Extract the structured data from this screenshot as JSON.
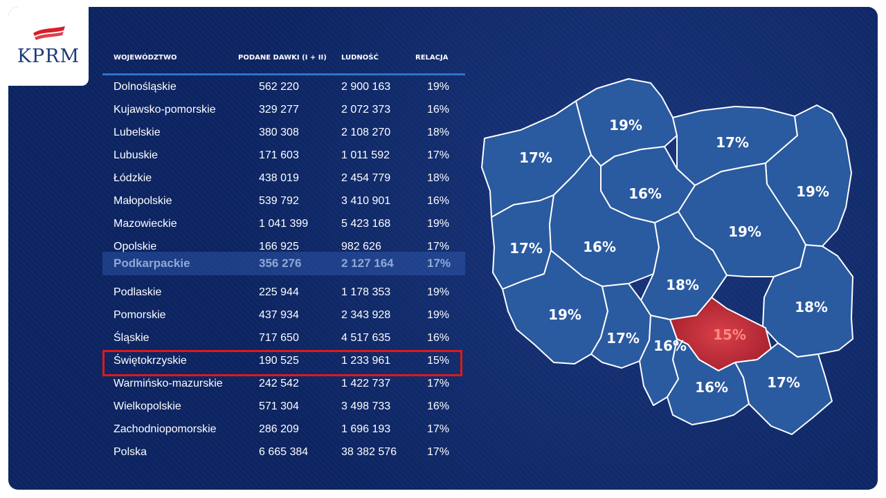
{
  "brand": {
    "logo_text": "KPRM"
  },
  "table": {
    "headers": [
      "WOJEWÓDZTWO",
      "PODANE DAWKI (I + II)",
      "LUDNOŚĆ",
      "RELACJA"
    ],
    "rows": [
      {
        "name": "Dolnośląskie",
        "doses": "562 220",
        "population": "2 900 163",
        "ratio": "19%"
      },
      {
        "name": "Kujawsko-pomorskie",
        "doses": "329 277",
        "population": "2 072 373",
        "ratio": "16%"
      },
      {
        "name": "Lubelskie",
        "doses": "380 308",
        "population": "2 108 270",
        "ratio": "18%"
      },
      {
        "name": "Lubuskie",
        "doses": "171 603",
        "population": "1 011 592",
        "ratio": "17%"
      },
      {
        "name": "Łódzkie",
        "doses": "438 019",
        "population": "2 454 779",
        "ratio": "18%"
      },
      {
        "name": "Małopolskie",
        "doses": "539 792",
        "population": "3 410 901",
        "ratio": "16%"
      },
      {
        "name": "Mazowieckie",
        "doses": "1 041 399",
        "population": "5 423 168",
        "ratio": "19%"
      },
      {
        "name": "Opolskie",
        "doses": "166 925",
        "population": "982 626",
        "ratio": "17%"
      },
      {
        "name": "Podkarpackie",
        "doses": "356 276",
        "population": "2 127 164",
        "ratio": "17%"
      },
      {
        "name": "Podlaskie",
        "doses": "225 944",
        "population": "1 178 353",
        "ratio": "19%"
      },
      {
        "name": "Pomorskie",
        "doses": "437 934",
        "population": "2 343 928",
        "ratio": "19%"
      },
      {
        "name": "Śląskie",
        "doses": "717 650",
        "population": "4 517 635",
        "ratio": "16%"
      },
      {
        "name": "Świętokrzyskie",
        "doses": "190 525",
        "population": "1 233 961",
        "ratio": "15%"
      },
      {
        "name": "Warmińsko-mazurskie",
        "doses": "242 542",
        "population": "1 422 737",
        "ratio": "17%"
      },
      {
        "name": "Wielkopolskie",
        "doses": "571 304",
        "population": "3 498 733",
        "ratio": "16%"
      },
      {
        "name": "Zachodniopomorskie",
        "doses": "286 209",
        "population": "1 696 193",
        "ratio": "17%"
      },
      {
        "name": "Polska",
        "doses": "6 665 384",
        "population": "38 382 576",
        "ratio": "17%"
      }
    ]
  },
  "map": {
    "labels": {
      "zachodniopomorskie": "17%",
      "pomorskie": "19%",
      "warminsko": "17%",
      "podlaskie": "19%",
      "kujawsko": "16%",
      "mazowieckie": "19%",
      "lubuskie": "17%",
      "wielkopolskie": "16%",
      "lodzkie": "18%",
      "lubelskie": "18%",
      "dolnoslaskie": "19%",
      "opolskie": "17%",
      "slaskie": "16%",
      "swietokrzyskie": "15%",
      "malopolskie": "16%",
      "podkarpackie": "17%"
    }
  },
  "colors": {
    "background": "#0c2461",
    "region_fill": "#2a5aa0",
    "highlight_fill": "#c8323c",
    "highlight_box": "#e01919",
    "header_rule": "#2f74c9"
  }
}
